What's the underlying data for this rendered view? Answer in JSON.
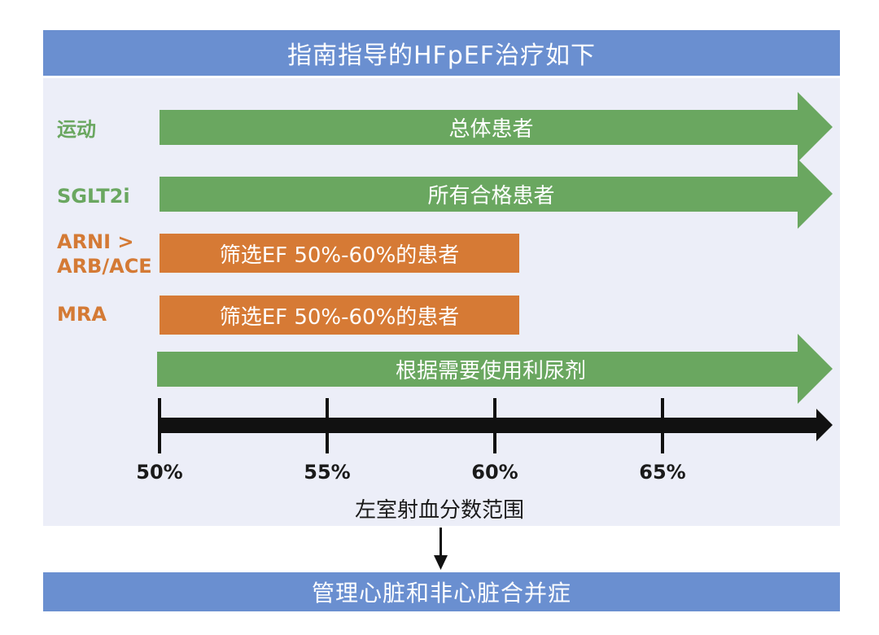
{
  "title": "指南指导的HFpEF治疗如下",
  "footer": "管理心脏和非心脏合并症",
  "rows": [
    {
      "label": "运动",
      "bar_text": "总体患者",
      "color": "#6aa760"
    },
    {
      "label": "SGLT2i",
      "bar_text": "所有合格患者",
      "color": "#6aa760"
    },
    {
      "label_line1": "ARNI >",
      "label_line2": "ARB/ACE",
      "bar_text": "筛选EF 50%-60%的患者",
      "color": "#d67a35"
    },
    {
      "label": "MRA",
      "bar_text": "筛选EF 50%-60%的患者",
      "color": "#d67a35"
    },
    {
      "bar_text": "根据需要使用利尿剂",
      "color": "#6aa760"
    }
  ],
  "axis": {
    "title": "左室射血分数范围",
    "ticks": [
      "50%",
      "55%",
      "60%",
      "65%"
    ]
  }
}
